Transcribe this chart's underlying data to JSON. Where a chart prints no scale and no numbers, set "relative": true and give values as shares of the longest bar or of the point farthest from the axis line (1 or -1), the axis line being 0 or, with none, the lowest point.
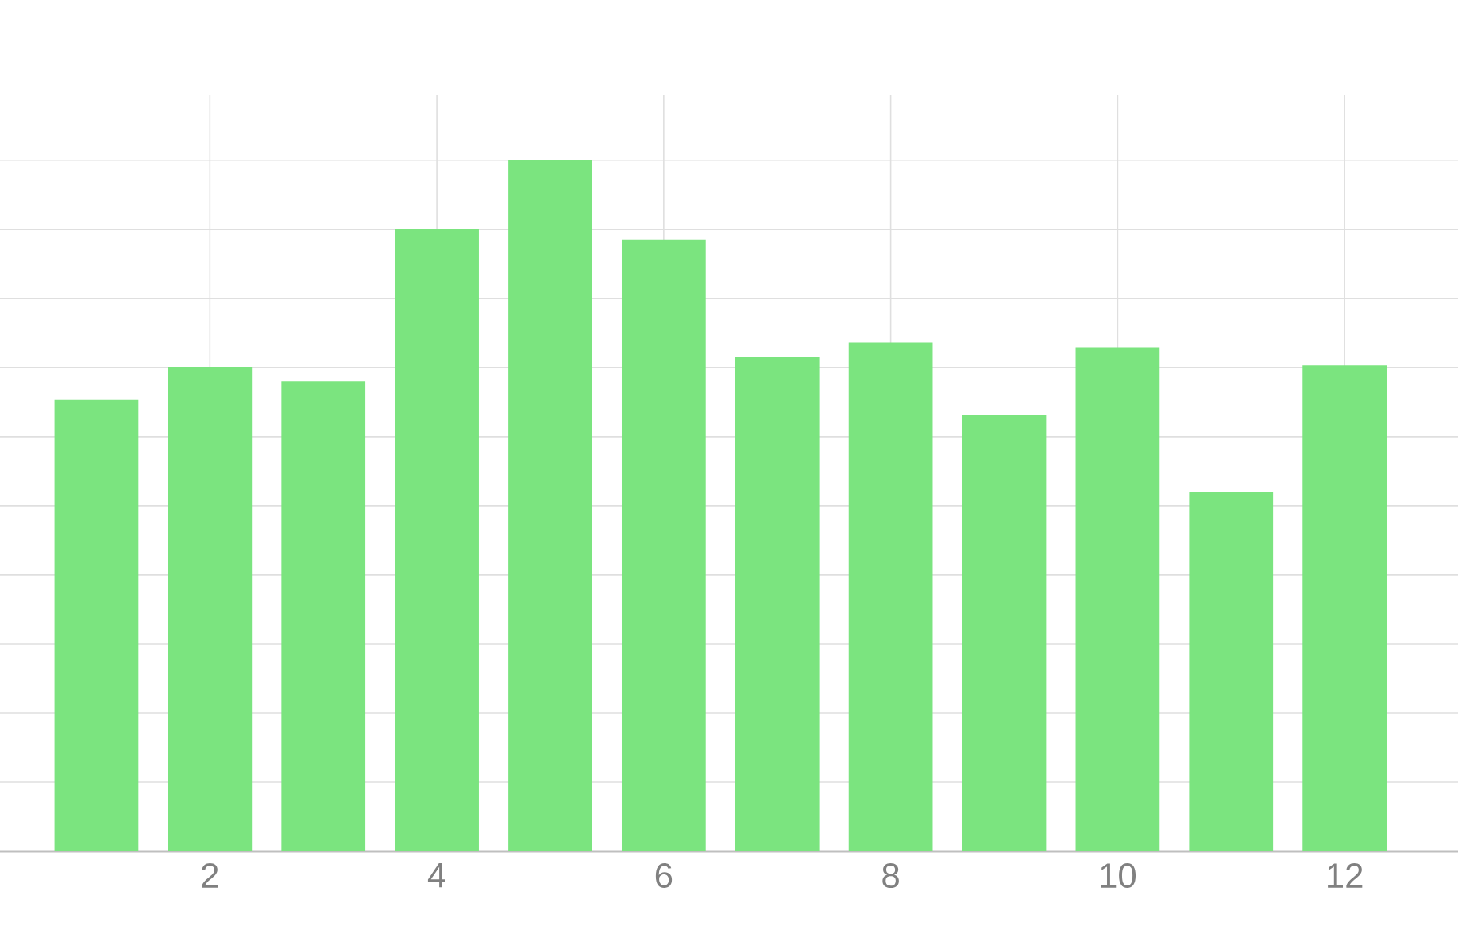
{
  "chart_data": {
    "type": "bar",
    "relative": true,
    "x": [
      1,
      2,
      3,
      4,
      5,
      6,
      7,
      8,
      9,
      10,
      11,
      12
    ],
    "values": [
      0.653,
      0.701,
      0.68,
      0.901,
      1,
      0.885,
      0.715,
      0.736,
      0.632,
      0.729,
      0.52,
      0.703
    ],
    "color": "#7be47f",
    "xlim": [
      0.15,
      13
    ],
    "xticks": [
      2,
      4,
      6,
      8,
      10,
      12
    ],
    "grid": true
  }
}
